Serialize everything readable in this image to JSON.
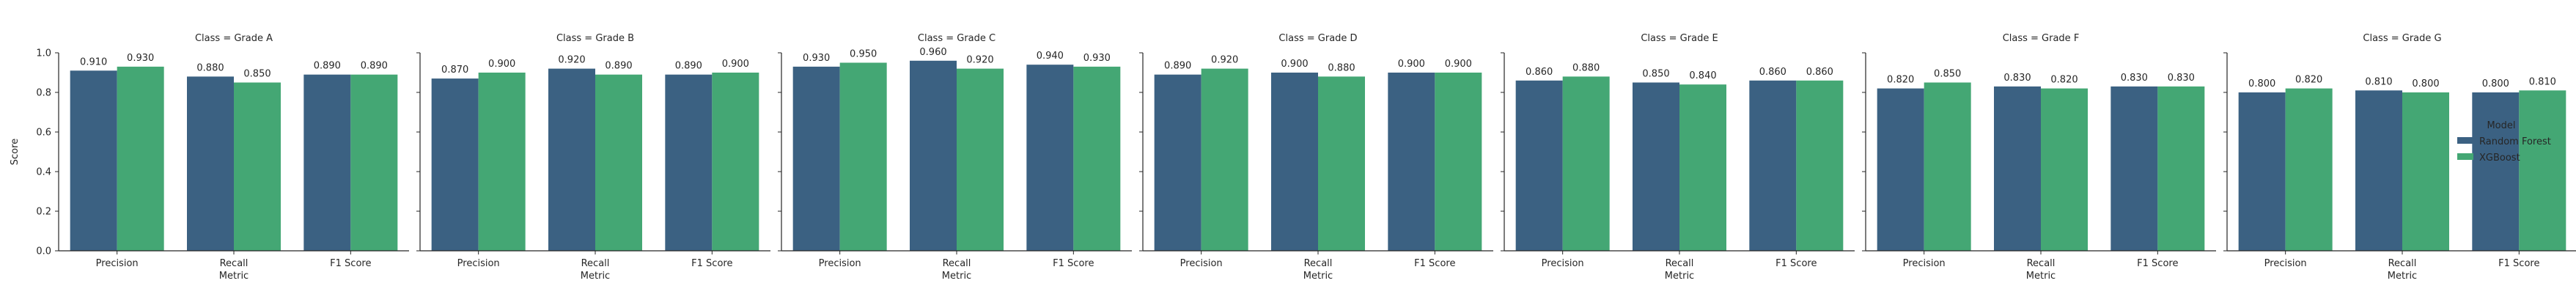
{
  "chart_data": {
    "type": "bar",
    "categories": [
      "Precision",
      "Recall",
      "F1 Score"
    ],
    "xlabel": "Metric",
    "ylabel": "Score",
    "ylim": [
      0,
      1.0
    ],
    "yticks": [
      "0.0",
      "0.2",
      "0.4",
      "0.6",
      "0.8",
      "1.0"
    ],
    "grid": false,
    "legend": {
      "title": "Model",
      "placement": "right",
      "entries": [
        "Random Forest",
        "XGBoost"
      ]
    },
    "colors": [
      "#3b6182",
      "#44a774"
    ],
    "facets": [
      {
        "title": "Class = Grade A",
        "series": [
          {
            "name": "Random Forest",
            "values": [
              0.91,
              0.88,
              0.89
            ]
          },
          {
            "name": "XGBoost",
            "values": [
              0.93,
              0.85,
              0.89
            ]
          }
        ]
      },
      {
        "title": "Class = Grade B",
        "series": [
          {
            "name": "Random Forest",
            "values": [
              0.87,
              0.92,
              0.89
            ]
          },
          {
            "name": "XGBoost",
            "values": [
              0.9,
              0.89,
              0.9
            ]
          }
        ]
      },
      {
        "title": "Class = Grade C",
        "series": [
          {
            "name": "Random Forest",
            "values": [
              0.93,
              0.96,
              0.94
            ]
          },
          {
            "name": "XGBoost",
            "values": [
              0.95,
              0.92,
              0.93
            ]
          }
        ]
      },
      {
        "title": "Class = Grade D",
        "series": [
          {
            "name": "Random Forest",
            "values": [
              0.89,
              0.9,
              0.9
            ]
          },
          {
            "name": "XGBoost",
            "values": [
              0.92,
              0.88,
              0.9
            ]
          }
        ]
      },
      {
        "title": "Class = Grade E",
        "series": [
          {
            "name": "Random Forest",
            "values": [
              0.86,
              0.85,
              0.86
            ]
          },
          {
            "name": "XGBoost",
            "values": [
              0.88,
              0.84,
              0.86
            ]
          }
        ]
      },
      {
        "title": "Class = Grade F",
        "series": [
          {
            "name": "Random Forest",
            "values": [
              0.82,
              0.83,
              0.83
            ]
          },
          {
            "name": "XGBoost",
            "values": [
              0.85,
              0.82,
              0.83
            ]
          }
        ]
      },
      {
        "title": "Class = Grade G",
        "series": [
          {
            "name": "Random Forest",
            "values": [
              0.8,
              0.81,
              0.8
            ]
          },
          {
            "name": "XGBoost",
            "values": [
              0.82,
              0.8,
              0.81
            ]
          }
        ]
      }
    ]
  }
}
